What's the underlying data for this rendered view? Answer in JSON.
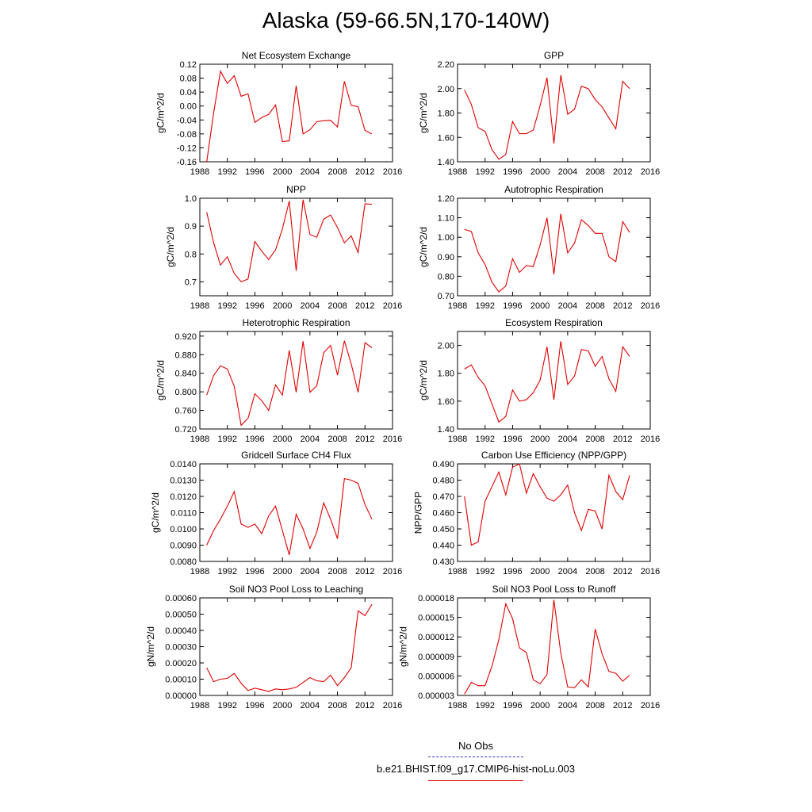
{
  "title": "Alaska (59-66.5N,170-140W)",
  "legend": {
    "obs_label": "No Obs",
    "obs_color": "#3333cc",
    "model_label": "b.e21.BHIST.f09_g17.CMIP6-hist-noLu.003",
    "model_color": "#e00000"
  },
  "chart_data": [
    {
      "type": "line",
      "title": "Net Ecosystem Exchange",
      "ylabel": "gC/m^2/d",
      "xlim": [
        1988,
        2016
      ],
      "xticks": [
        "1988",
        "1992",
        "1996",
        "2000",
        "2004",
        "2008",
        "2012",
        "2016"
      ],
      "ylim": [
        -0.16,
        0.12
      ],
      "yticks": [
        "-0.16",
        "-0.12",
        "-0.08",
        "-0.04",
        "0.00",
        "0.04",
        "0.08",
        "0.12"
      ],
      "x": [
        1989,
        1990,
        1991,
        1992,
        1993,
        1994,
        1995,
        1996,
        1997,
        1998,
        1999,
        2000,
        2001,
        2002,
        2003,
        2004,
        2005,
        2006,
        2007,
        2008,
        2009,
        2010,
        2011,
        2012,
        2013
      ],
      "series": [
        {
          "values": [
            -0.16,
            -0.02,
            0.1,
            0.065,
            0.087,
            0.028,
            0.035,
            -0.047,
            -0.033,
            -0.024,
            0.003,
            -0.102,
            -0.1,
            0.058,
            -0.08,
            -0.068,
            -0.045,
            -0.042,
            -0.041,
            -0.06,
            0.071,
            0.002,
            -0.002,
            -0.07,
            -0.08
          ]
        }
      ]
    },
    {
      "type": "line",
      "title": "GPP",
      "ylabel": "gC/m^2/d",
      "xlim": [
        1988,
        2016
      ],
      "xticks": [
        "1988",
        "1992",
        "1996",
        "2000",
        "2004",
        "2008",
        "2012",
        "2016"
      ],
      "ylim": [
        1.4,
        2.2
      ],
      "yticks": [
        "1.40",
        "1.60",
        "1.80",
        "2.00",
        "2.20"
      ],
      "x": [
        1989,
        1990,
        1991,
        1992,
        1993,
        1994,
        1995,
        1996,
        1997,
        1998,
        1999,
        2000,
        2001,
        2002,
        2003,
        2004,
        2005,
        2006,
        2007,
        2008,
        2009,
        2010,
        2011,
        2012,
        2013
      ],
      "series": [
        {
          "values": [
            1.99,
            1.87,
            1.68,
            1.65,
            1.5,
            1.42,
            1.46,
            1.73,
            1.63,
            1.63,
            1.66,
            1.86,
            2.09,
            1.55,
            2.11,
            1.79,
            1.83,
            2.02,
            2.0,
            1.91,
            1.85,
            1.76,
            1.67,
            2.06,
            2.0
          ]
        }
      ]
    },
    {
      "type": "line",
      "title": "NPP",
      "ylabel": "gC/m^2/d",
      "xlim": [
        1988,
        2016
      ],
      "xticks": [
        "1988",
        "1992",
        "1996",
        "2000",
        "2004",
        "2008",
        "2012",
        "2016"
      ],
      "ylim": [
        0.65,
        1.0
      ],
      "yticks": [
        "0.7",
        "0.8",
        "0.9",
        "1.0"
      ],
      "x": [
        1989,
        1990,
        1991,
        1992,
        1993,
        1994,
        1995,
        1996,
        1997,
        1998,
        1999,
        2000,
        2001,
        2002,
        2003,
        2004,
        2005,
        2006,
        2007,
        2008,
        2009,
        2010,
        2011,
        2012,
        2013
      ],
      "series": [
        {
          "values": [
            0.95,
            0.84,
            0.76,
            0.79,
            0.73,
            0.7,
            0.71,
            0.845,
            0.81,
            0.78,
            0.815,
            0.89,
            0.99,
            0.74,
            0.995,
            0.87,
            0.86,
            0.925,
            0.94,
            0.895,
            0.84,
            0.865,
            0.805,
            0.98,
            0.978
          ]
        }
      ]
    },
    {
      "type": "line",
      "title": "Autotrophic Respiration",
      "ylabel": "gC/m^2/d",
      "xlim": [
        1988,
        2016
      ],
      "xticks": [
        "1988",
        "1992",
        "1996",
        "2000",
        "2004",
        "2008",
        "2012",
        "2016"
      ],
      "ylim": [
        0.7,
        1.2
      ],
      "yticks": [
        "0.70",
        "0.80",
        "0.90",
        "1.00",
        "1.10",
        "1.20"
      ],
      "x": [
        1989,
        1990,
        1991,
        1992,
        1993,
        1994,
        1995,
        1996,
        1997,
        1998,
        1999,
        2000,
        2001,
        2002,
        2003,
        2004,
        2005,
        2006,
        2007,
        2008,
        2009,
        2010,
        2011,
        2012,
        2013
      ],
      "series": [
        {
          "values": [
            1.04,
            1.03,
            0.92,
            0.86,
            0.77,
            0.72,
            0.75,
            0.89,
            0.82,
            0.855,
            0.85,
            0.96,
            1.1,
            0.81,
            1.12,
            0.92,
            0.97,
            1.09,
            1.06,
            1.02,
            1.02,
            0.9,
            0.875,
            1.08,
            1.025
          ]
        }
      ]
    },
    {
      "type": "line",
      "title": "Heterotrophic Respiration",
      "ylabel": "gC/m^2/d",
      "xlim": [
        1988,
        2016
      ],
      "xticks": [
        "1988",
        "1992",
        "1996",
        "2000",
        "2004",
        "2008",
        "2012",
        "2016"
      ],
      "ylim": [
        0.72,
        0.93
      ],
      "yticks": [
        "0.720",
        "0.760",
        "0.800",
        "0.840",
        "0.880",
        "0.920"
      ],
      "x": [
        1989,
        1990,
        1991,
        1992,
        1993,
        1994,
        1995,
        1996,
        1997,
        1998,
        1999,
        2000,
        2001,
        2002,
        2003,
        2004,
        2005,
        2006,
        2007,
        2008,
        2009,
        2010,
        2011,
        2012,
        2013
      ],
      "series": [
        {
          "values": [
            0.793,
            0.835,
            0.856,
            0.849,
            0.812,
            0.728,
            0.743,
            0.796,
            0.781,
            0.76,
            0.815,
            0.793,
            0.889,
            0.799,
            0.909,
            0.799,
            0.813,
            0.884,
            0.9,
            0.836,
            0.91,
            0.86,
            0.799,
            0.906,
            0.895
          ]
        }
      ]
    },
    {
      "type": "line",
      "title": "Ecosystem Respiration",
      "ylabel": "gC/m^2/d",
      "xlim": [
        1988,
        2016
      ],
      "xticks": [
        "1988",
        "1992",
        "1996",
        "2000",
        "2004",
        "2008",
        "2012",
        "2016"
      ],
      "ylim": [
        1.4,
        2.1
      ],
      "yticks": [
        "1.40",
        "1.60",
        "1.80",
        "2.00"
      ],
      "x": [
        1989,
        1990,
        1991,
        1992,
        1993,
        1994,
        1995,
        1996,
        1997,
        1998,
        1999,
        2000,
        2001,
        2002,
        2003,
        2004,
        2005,
        2006,
        2007,
        2008,
        2009,
        2010,
        2011,
        2012,
        2013
      ],
      "series": [
        {
          "values": [
            1.83,
            1.86,
            1.77,
            1.71,
            1.58,
            1.45,
            1.49,
            1.68,
            1.6,
            1.61,
            1.66,
            1.75,
            1.99,
            1.61,
            2.03,
            1.72,
            1.78,
            1.97,
            1.96,
            1.85,
            1.92,
            1.76,
            1.67,
            1.99,
            1.92
          ]
        }
      ]
    },
    {
      "type": "line",
      "title": "Gridcell Surface CH4 Flux",
      "ylabel": "gC/m^2/d",
      "xlim": [
        1988,
        2016
      ],
      "xticks": [
        "1988",
        "1992",
        "1996",
        "2000",
        "2004",
        "2008",
        "2012",
        "2016"
      ],
      "ylim": [
        0.008,
        0.014
      ],
      "yticks": [
        "0.0080",
        "0.0090",
        "0.0100",
        "0.0110",
        "0.0120",
        "0.0130",
        "0.0140"
      ],
      "x": [
        1989,
        1990,
        1991,
        1992,
        1993,
        1994,
        1995,
        1996,
        1997,
        1998,
        1999,
        2000,
        2001,
        2002,
        2003,
        2004,
        2005,
        2006,
        2007,
        2008,
        2009,
        2010,
        2011,
        2012,
        2013
      ],
      "series": [
        {
          "values": [
            0.009,
            0.0099,
            0.0106,
            0.0114,
            0.0123,
            0.0103,
            0.0101,
            0.0103,
            0.0097,
            0.0108,
            0.0114,
            0.0099,
            0.0084,
            0.0109,
            0.01,
            0.0088,
            0.0098,
            0.0116,
            0.0106,
            0.0094,
            0.0131,
            0.013,
            0.0128,
            0.0115,
            0.0106
          ]
        }
      ]
    },
    {
      "type": "line",
      "title": "Carbon Use Efficiency (NPP/GPP)",
      "ylabel": "NPP/GPP",
      "xlim": [
        1988,
        2016
      ],
      "xticks": [
        "1988",
        "1992",
        "1996",
        "2000",
        "2004",
        "2008",
        "2012",
        "2016"
      ],
      "ylim": [
        0.43,
        0.49
      ],
      "yticks": [
        "0.430",
        "0.440",
        "0.450",
        "0.460",
        "0.470",
        "0.480",
        "0.490"
      ],
      "x": [
        1989,
        1990,
        1991,
        1992,
        1993,
        1994,
        1995,
        1996,
        1997,
        1998,
        1999,
        2000,
        2001,
        2002,
        2003,
        2004,
        2005,
        2006,
        2007,
        2008,
        2009,
        2010,
        2011,
        2012,
        2013
      ],
      "series": [
        {
          "values": [
            0.47,
            0.44,
            0.442,
            0.467,
            0.476,
            0.485,
            0.471,
            0.488,
            0.49,
            0.472,
            0.484,
            0.476,
            0.469,
            0.467,
            0.471,
            0.477,
            0.46,
            0.449,
            0.462,
            0.461,
            0.45,
            0.483,
            0.473,
            0.468,
            0.483
          ]
        }
      ]
    },
    {
      "type": "line",
      "title": "Soil NO3 Pool Loss to Leaching",
      "ylabel": "gN/m^2/d",
      "xlim": [
        1988,
        2016
      ],
      "xticks": [
        "1988",
        "1992",
        "1996",
        "2000",
        "2004",
        "2008",
        "2012",
        "2016"
      ],
      "ylim": [
        0.0,
        0.0006
      ],
      "yticks": [
        "0.00000",
        "0.00010",
        "0.00020",
        "0.00030",
        "0.00040",
        "0.00050",
        "0.00060"
      ],
      "x": [
        1989,
        1990,
        1991,
        1992,
        1993,
        1994,
        1995,
        1996,
        1997,
        1998,
        1999,
        2000,
        2001,
        2002,
        2003,
        2004,
        2005,
        2006,
        2007,
        2008,
        2009,
        2010,
        2011,
        2012,
        2013
      ],
      "series": [
        {
          "values": [
            0.00017,
            8.5e-05,
            0.0001,
            0.000105,
            0.000135,
            7.5e-05,
            3e-05,
            4.5e-05,
            3.5e-05,
            2.5e-05,
            4e-05,
            3.5e-05,
            4e-05,
            5e-05,
            8e-05,
            0.00011,
            9e-05,
            8.5e-05,
            0.000125,
            6e-05,
            0.00011,
            0.00017,
            0.00052,
            0.00049,
            0.00056
          ]
        }
      ]
    },
    {
      "type": "line",
      "title": "Soil NO3 Pool Loss to Runoff",
      "ylabel": "gN/m^2/d",
      "xlim": [
        1988,
        2016
      ],
      "xticks": [
        "1988",
        "1992",
        "1996",
        "2000",
        "2004",
        "2008",
        "2012",
        "2016"
      ],
      "ylim": [
        3e-06,
        1.8e-05
      ],
      "yticks": [
        "0.000003",
        "0.000006",
        "0.000009",
        "0.000012",
        "0.000015",
        "0.000018"
      ],
      "x": [
        1989,
        1990,
        1991,
        1992,
        1993,
        1994,
        1995,
        1996,
        1997,
        1998,
        1999,
        2000,
        2001,
        2002,
        2003,
        2004,
        2005,
        2006,
        2007,
        2008,
        2009,
        2010,
        2011,
        2012,
        2013
      ],
      "series": [
        {
          "values": [
            3.2e-06,
            5e-06,
            4.5e-06,
            4.5e-06,
            7.5e-06,
            1.16e-05,
            1.71e-05,
            1.48e-05,
            1.03e-05,
            9.6e-06,
            5.4e-06,
            4.8e-06,
            6.2e-06,
            1.77e-05,
            9.5e-06,
            4.3e-06,
            4.2e-06,
            5.4e-06,
            4.3e-06,
            1.32e-05,
            9.4e-06,
            6.7e-06,
            6.4e-06,
            5.2e-06,
            6.1e-06
          ]
        }
      ]
    }
  ]
}
